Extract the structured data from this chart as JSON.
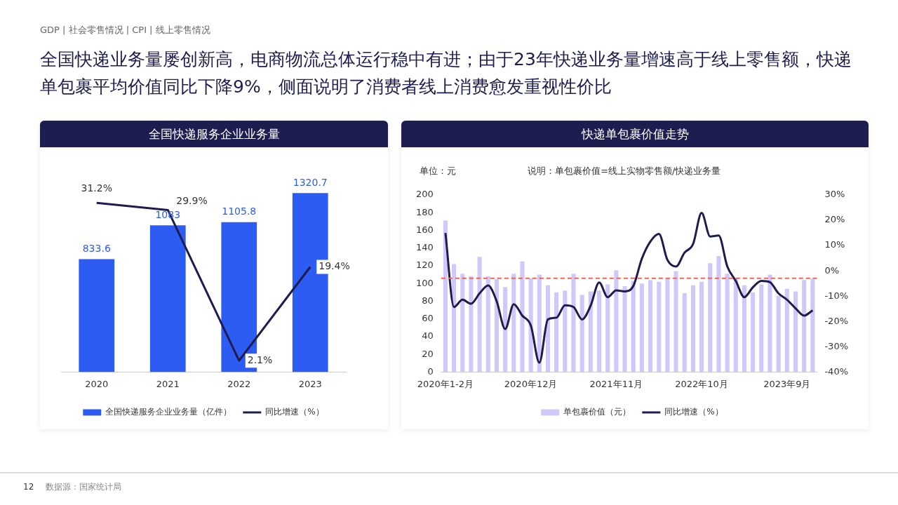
{
  "chart_data": [
    {
      "type": "bar",
      "title": "全国快递服务企业业务量",
      "categories": [
        "2020",
        "2021",
        "2022",
        "2023"
      ],
      "annotations": [
        "GDP | 社会零售情况 | CPI | 线上零售情况",
        "全国快递业务量屡创新高，电商物流总体运行稳中有进；由于23年快递业务量增速高于线上零售额，快递单包裹平均价值同比下降9%，侧面说明了消费者线上消费愈发重视性价比",
        "数据源：国家统计局",
        "12"
      ],
      "tick_labels": "x",
      "legend": "bottom",
      "grid": false,
      "marker": "none",
      "series": [
        {
          "name": "全国快递服务企业业务量（亿件）",
          "color": "#2c5cf2",
          "values": [
            833.6,
            1083,
            1105.8,
            1320.7
          ],
          "value_labels": [
            "833.6",
            "1083",
            "1105.8",
            "1320.7"
          ]
        },
        {
          "type": "line",
          "name": "同比增速（%）",
          "color": "#1d1c4e",
          "axis": "y2",
          "values": [
            31.2,
            29.9,
            2.1,
            19.4
          ],
          "value_labels": [
            "31.2%",
            "29.9%",
            "2.1%",
            "19.4%"
          ]
        }
      ]
    },
    {
      "type": "bar",
      "title": "快递单包裹价值走势",
      "categories": [
        "2020年1-2月",
        null,
        null,
        null,
        null,
        null,
        null,
        null,
        null,
        null,
        "2020年12月",
        null,
        null,
        null,
        null,
        null,
        null,
        null,
        null,
        null,
        "2021年11月",
        null,
        null,
        null,
        null,
        null,
        null,
        null,
        null,
        null,
        "2022年10月",
        null,
        null,
        null,
        null,
        null,
        null,
        null,
        null,
        null,
        "2023年9月",
        null,
        null,
        null
      ],
      "annotations": [
        "单位：元",
        "说明：单包裹价值=线上实物零售额/快递业务量"
      ],
      "ylim": [
        0,
        200
      ],
      "yticks": [
        0,
        20,
        40,
        60,
        80,
        100,
        120,
        140,
        160,
        180,
        200
      ],
      "y2lim": [
        -40,
        30
      ],
      "y2ticks": [
        {
          "value": -40,
          "label": "-40%"
        },
        {
          "value": -30,
          "label": "-30%"
        },
        {
          "value": -20,
          "label": "-20%"
        },
        {
          "value": -10,
          "label": "-10%"
        },
        {
          "value": 0,
          "label": "0%"
        },
        {
          "value": 10,
          "label": "10%"
        },
        {
          "value": 20,
          "label": "20%"
        },
        {
          "value": 30,
          "label": "30%"
        }
      ],
      "legend": "bottom",
      "grid": false,
      "marker": "none",
      "ref_lines": [
        {
          "axis": "y",
          "value": 106,
          "color": "#f06455",
          "line_style": "dashed"
        }
      ],
      "series": [
        {
          "name": "单包裹价值（元）",
          "color": "#cfc8f8",
          "values": [
            171,
            122,
            111,
            108,
            130,
            108,
            105,
            96,
            111,
            125,
            106,
            110,
            98,
            90,
            92,
            111,
            87,
            91,
            92,
            99,
            115,
            97,
            103,
            100,
            104,
            102,
            106,
            114,
            89,
            98,
            102,
            123,
            131,
            111,
            106,
            98,
            90,
            99,
            110,
            86,
            94,
            91,
            104,
            106
          ]
        },
        {
          "type": "line",
          "name": "同比增速（%）",
          "color": "#1d1c4e",
          "axis": "y2",
          "values": [
            15,
            -14.3,
            -11.4,
            -13,
            -8.9,
            -5.8,
            -12,
            -23,
            -13.2,
            -17.7,
            -21.6,
            -36.3,
            -19.2,
            -18.5,
            -13.6,
            -14.3,
            -19.2,
            -13.8,
            -4.6,
            -10.4,
            -7.7,
            -8.1,
            -6,
            4.8,
            11.6,
            14.6,
            4.3,
            1.7,
            7.2,
            10.6,
            22.9,
            13.6,
            14,
            1.8,
            -4,
            -10.4,
            -6.5,
            -4,
            -4.5,
            -8.9,
            -11.4,
            -14.8,
            -17.7,
            -15.6
          ]
        }
      ]
    }
  ]
}
